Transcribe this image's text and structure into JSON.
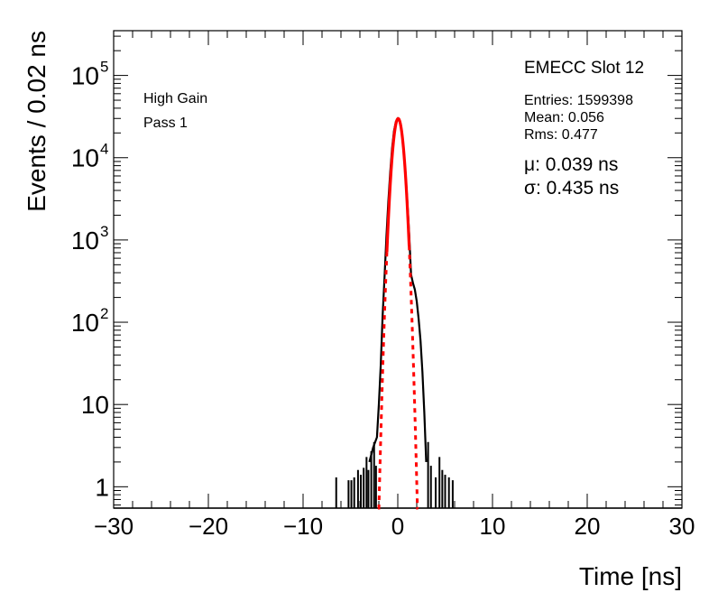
{
  "chart_data": {
    "type": "line",
    "title": "",
    "xlabel": "Time [ns]",
    "ylabel": "Events / 0.02 ns",
    "xlim": [
      -30,
      30
    ],
    "ylim": [
      0.55,
      350000
    ],
    "log_y": true,
    "grid": false,
    "x_ticks": [
      -30,
      -20,
      -10,
      0,
      10,
      20,
      30
    ],
    "x_tick_labels": [
      "−30",
      "−20",
      "−10",
      "0",
      "10",
      "20",
      "30"
    ],
    "y_ticks": [
      {
        "value": 1,
        "base": "1",
        "exp": ""
      },
      {
        "value": 10,
        "base": "10",
        "exp": ""
      },
      {
        "value": 100,
        "base": "10",
        "exp": "2"
      },
      {
        "value": 1000,
        "base": "10",
        "exp": "3"
      },
      {
        "value": 10000,
        "base": "10",
        "exp": "4"
      },
      {
        "value": 100000,
        "base": "10",
        "exp": "5"
      }
    ],
    "annotations": {
      "gain": "High Gain",
      "pass": "Pass 1",
      "slot": "EMECC Slot 12",
      "entries": "Entries: 1599398",
      "mean": "Mean: 0.056",
      "rms": "Rms: 0.477",
      "mu": "μ: 0.039 ns",
      "sigma": "σ: 0.435 ns"
    },
    "series": [
      {
        "kind": "histogram",
        "color": "#000000",
        "x": [
          -3.0,
          -2.6,
          -2.2,
          -2.0,
          -1.8,
          -1.6,
          -1.4,
          -1.2,
          -1.0,
          -0.8,
          -0.6,
          -0.4,
          -0.2,
          0.0,
          0.2,
          0.4,
          0.6,
          0.8,
          1.0,
          1.2,
          1.4,
          1.6,
          1.8,
          2.0,
          2.2,
          2.4,
          2.6,
          2.8,
          3.0
        ],
        "y": [
          2,
          3,
          4,
          10,
          30,
          120,
          350,
          1100,
          2900,
          6600,
          13100,
          21100,
          27400,
          29900,
          27600,
          21400,
          13400,
          6900,
          3000,
          1200,
          380,
          300,
          250,
          180,
          110,
          60,
          25,
          8,
          2
        ],
        "spikes": [
          {
            "x": -6.5,
            "y": 1.3
          },
          {
            "x": -5.2,
            "y": 1.2
          },
          {
            "x": -4.9,
            "y": 1.2
          },
          {
            "x": -4.6,
            "y": 1.3
          },
          {
            "x": -4.2,
            "y": 1.6
          },
          {
            "x": -3.9,
            "y": 1.4
          },
          {
            "x": -3.6,
            "y": 1.7
          },
          {
            "x": -3.3,
            "y": 2.3
          },
          {
            "x": -3.1,
            "y": 1.6
          },
          {
            "x": -2.8,
            "y": 2.7
          },
          {
            "x": -2.5,
            "y": 3.5
          },
          {
            "x": -2.3,
            "y": 1.8
          },
          {
            "x": 3.2,
            "y": 3.5
          },
          {
            "x": 3.5,
            "y": 1.8
          },
          {
            "x": 4.0,
            "y": 1.3
          },
          {
            "x": 4.4,
            "y": 2.3
          },
          {
            "x": 4.7,
            "y": 1.6
          },
          {
            "x": 5.0,
            "y": 1.4
          },
          {
            "x": 5.4,
            "y": 1.3
          },
          {
            "x": 5.8,
            "y": 1.2
          }
        ]
      },
      {
        "kind": "gaussian_fit",
        "color": "#ff0000",
        "amplitude": 29900,
        "mean": 0.039,
        "sigma": 0.435,
        "solid_range": [
          -1.15,
          1.2
        ],
        "dashed_range": [
          -2.1,
          2.15
        ]
      }
    ]
  }
}
